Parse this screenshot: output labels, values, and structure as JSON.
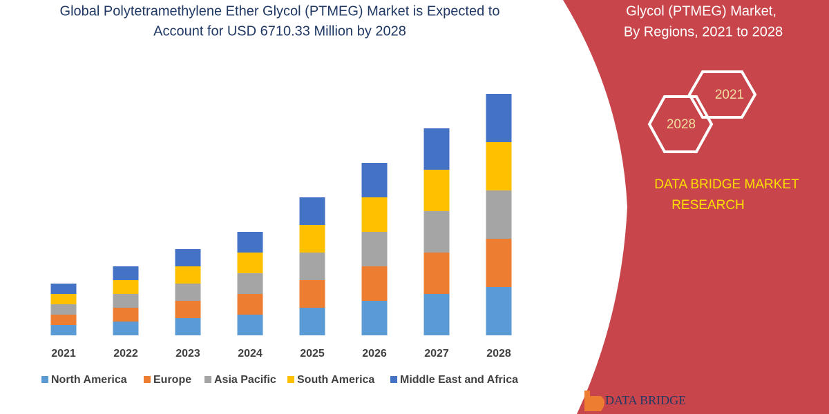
{
  "chart_data": {
    "type": "stacked_bar",
    "title": [
      "Global Polytetramethylene Ether Glycol (PTMEG) Market is Expected to",
      "Account for USD 6710.33 Million by 2028"
    ],
    "categories": [
      "2021",
      "2022",
      "2023",
      "2024",
      "2025",
      "2026",
      "2027",
      "2028"
    ],
    "series": [
      {
        "name": "North America",
        "color": "#5b9bd5",
        "values": [
          15,
          20,
          25,
          30,
          40,
          50,
          60,
          70
        ]
      },
      {
        "name": "Europe",
        "color": "#ed7d31",
        "values": [
          15,
          20,
          25,
          30,
          40,
          50,
          60,
          70
        ]
      },
      {
        "name": "Asia Pacific",
        "color": "#a5a5a5",
        "values": [
          15,
          20,
          25,
          30,
          40,
          50,
          60,
          70
        ]
      },
      {
        "name": "South America",
        "color": "#ffc000",
        "values": [
          15,
          20,
          25,
          30,
          40,
          50,
          60,
          70
        ]
      },
      {
        "name": "Middle East and Africa",
        "color": "#4472c4",
        "values": [
          15,
          20,
          25,
          30,
          40,
          50,
          60,
          70
        ]
      }
    ],
    "ylim": [
      0,
      350
    ]
  },
  "panel": {
    "subtitle": [
      "Glycol (PTMEG) Market,",
      "By Regions, 2021 to 2028"
    ],
    "hexagons": [
      "2021",
      "2028"
    ],
    "brand": [
      "DATA BRIDGE MARKET",
      "RESEARCH"
    ],
    "logo": "DATA BRIDGE"
  }
}
